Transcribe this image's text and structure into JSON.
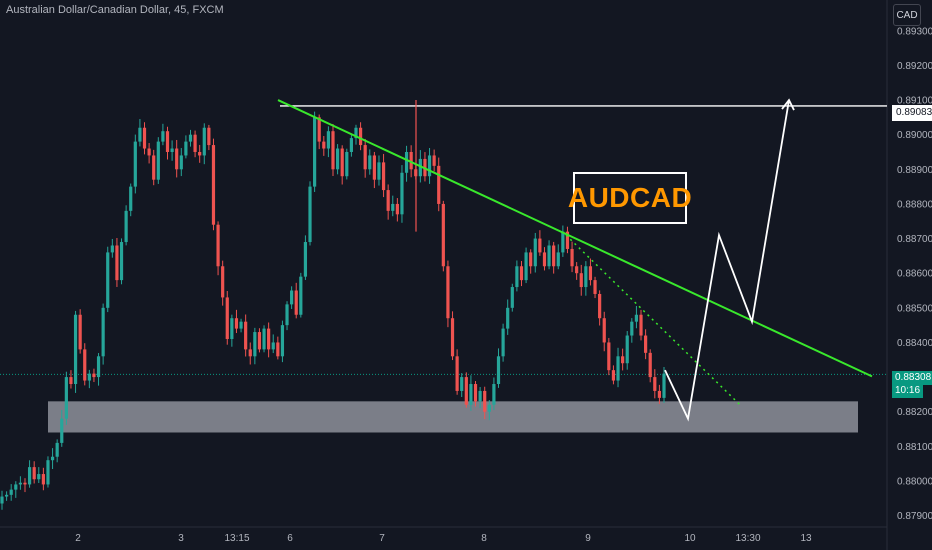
{
  "header": {
    "title": "Australian Dollar/Canadian Dollar, 45, FXCM",
    "currency_button": "CAD"
  },
  "annotation_label": "AUDCAD",
  "colors": {
    "background": "#131722",
    "up_candle": "#26a69a",
    "down_candle": "#ef5350",
    "trendline": "#39e82c",
    "projection": "#ffffff",
    "support_zone": "#d1d4dc",
    "label_text": "#ff9800"
  },
  "price_tags": {
    "resistance": "0.89083",
    "last_price": "0.88308",
    "countdown": "10:16"
  },
  "chart_data": {
    "type": "candlestick",
    "symbol": "AUDCAD",
    "timeframe": "45",
    "source": "FXCM",
    "y_ticks": [
      "0.89300",
      "0.89200",
      "0.89100",
      "0.89000",
      "0.88900",
      "0.88800",
      "0.88700",
      "0.88600",
      "0.88500",
      "0.88400",
      "0.88300",
      "0.88200",
      "0.88100",
      "0.88000",
      "0.87900"
    ],
    "ylim": [
      0.8787,
      0.8936
    ],
    "x_ticks": [
      "2",
      "3",
      "13:15",
      "6",
      "7",
      "8",
      "9",
      "10",
      "13:30",
      "13"
    ],
    "series_close_path": [
      0.87955,
      0.8796,
      0.87975,
      0.8799,
      0.87995,
      0.8799,
      0.8804,
      0.88005,
      0.8802,
      0.8799,
      0.8806,
      0.8807,
      0.8811,
      0.8818,
      0.883,
      0.8828,
      0.8848,
      0.8838,
      0.8829,
      0.8831,
      0.883,
      0.8836,
      0.885,
      0.8866,
      0.8868,
      0.8858,
      0.8869,
      0.8878,
      0.8885,
      0.8898,
      0.8902,
      0.8896,
      0.8894,
      0.8887,
      0.8898,
      0.8901,
      0.8895,
      0.8896,
      0.889,
      0.8894,
      0.8898,
      0.89,
      0.8895,
      0.8894,
      0.8902,
      0.8897,
      0.8874,
      0.8862,
      0.8853,
      0.8841,
      0.8847,
      0.8844,
      0.8846,
      0.8838,
      0.8836,
      0.8843,
      0.8838,
      0.8844,
      0.8838,
      0.884,
      0.8836,
      0.8845,
      0.8851,
      0.8855,
      0.8848,
      0.8859,
      0.8869,
      0.8885,
      0.8905,
      0.8898,
      0.8896,
      0.8901,
      0.889,
      0.8896,
      0.8888,
      0.8895,
      0.8899,
      0.8902,
      0.8897,
      0.889,
      0.8894,
      0.8887,
      0.8892,
      0.8884,
      0.8878,
      0.888,
      0.8877,
      0.8889,
      0.8895,
      0.889,
      0.8888,
      0.8893,
      0.8888,
      0.8894,
      0.8891,
      0.888,
      0.8862,
      0.8847,
      0.8836,
      0.8826,
      0.883,
      0.8822,
      0.8828,
      0.8823,
      0.8826,
      0.882,
      0.8822,
      0.8828,
      0.8836,
      0.8844,
      0.885,
      0.8856,
      0.8862,
      0.8858,
      0.8866,
      0.8862,
      0.887,
      0.8866,
      0.8862,
      0.8868,
      0.8862,
      0.8866,
      0.8872,
      0.8867,
      0.8862,
      0.886,
      0.8856,
      0.8862,
      0.8858,
      0.8854,
      0.8847,
      0.884,
      0.8832,
      0.8829,
      0.8836,
      0.8834,
      0.8842,
      0.8846,
      0.8848,
      0.8842,
      0.8837,
      0.883,
      0.8826,
      0.8824,
      0.8831
    ],
    "support_zone": [
      0.8814,
      0.8823
    ],
    "resistance_level": 0.89083,
    "trendline": {
      "from_price": 0.891,
      "to_price": 0.88302
    },
    "projection_prices": [
      0.8832,
      0.8818,
      0.8871,
      0.8846,
      0.891
    ]
  }
}
